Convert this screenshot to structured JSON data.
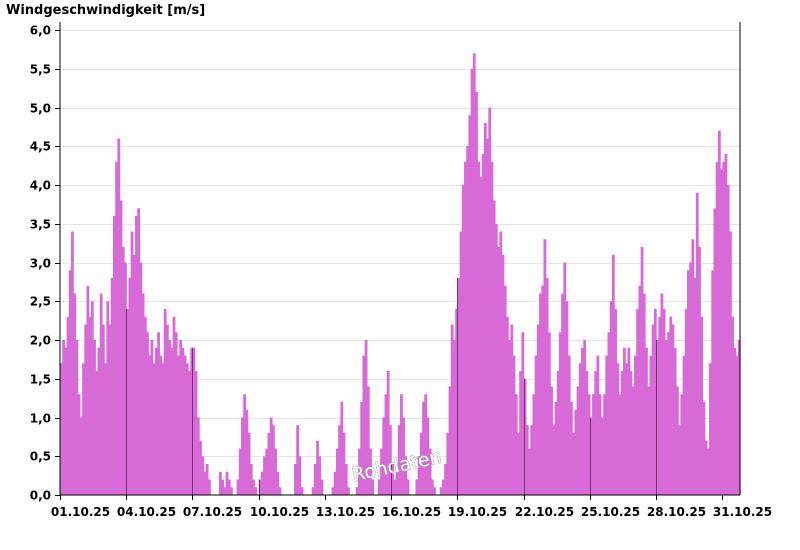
{
  "chart_data": {
    "type": "bar",
    "title": "Windgeschwindigkeit [m/s]",
    "xlabel": "",
    "ylabel": "Windgeschwindigkeit [m/s]",
    "ylim": [
      0,
      6.0
    ],
    "grid": true,
    "series_color": "#d86ad8",
    "day_marker_color": "#7a2c7a",
    "watermark": "Rohdaten",
    "x_unit": "day of October 2025 (bar position in days from 01.10.25 00:00)",
    "y_tick_labels": [
      "0,0",
      "0,5",
      "1,0",
      "1,5",
      "2,0",
      "2,5",
      "3,0",
      "3,5",
      "4,0",
      "4,5",
      "5,0",
      "5,5",
      "6,0"
    ],
    "y_ticks": [
      0,
      0.5,
      1.0,
      1.5,
      2.0,
      2.5,
      3.0,
      3.5,
      4.0,
      4.5,
      5.0,
      5.5,
      6.0
    ],
    "x_tick_labels": [
      "01.10.25",
      "04.10.25",
      "07.10.25",
      "10.10.25",
      "13.10.25",
      "16.10.25",
      "19.10.25",
      "22.10.25",
      "25.10.25",
      "28.10.25",
      "31.10.25"
    ],
    "x_ticks": [
      0,
      3,
      6,
      9,
      12,
      15,
      18,
      21,
      24,
      27,
      30
    ],
    "points": [
      [
        0.0,
        1.7
      ],
      [
        0.1,
        2.0
      ],
      [
        0.2,
        1.9
      ],
      [
        0.3,
        2.3
      ],
      [
        0.4,
        2.9
      ],
      [
        0.5,
        3.4
      ],
      [
        0.6,
        2.6
      ],
      [
        0.7,
        2.0
      ],
      [
        0.8,
        1.3
      ],
      [
        0.9,
        1.0
      ],
      [
        1.0,
        1.7
      ],
      [
        1.1,
        2.2
      ],
      [
        1.2,
        2.7
      ],
      [
        1.3,
        2.3
      ],
      [
        1.4,
        2.5
      ],
      [
        1.5,
        2.0
      ],
      [
        1.6,
        1.6
      ],
      [
        1.7,
        1.9
      ],
      [
        1.8,
        2.6
      ],
      [
        1.9,
        2.2
      ],
      [
        2.0,
        1.7
      ],
      [
        2.1,
        2.5
      ],
      [
        2.2,
        2.2
      ],
      [
        2.3,
        2.8
      ],
      [
        2.4,
        3.6
      ],
      [
        2.5,
        4.3
      ],
      [
        2.6,
        4.6
      ],
      [
        2.7,
        3.8
      ],
      [
        2.8,
        3.2
      ],
      [
        2.9,
        3.0
      ],
      [
        3.0,
        2.4
      ],
      [
        3.1,
        2.8
      ],
      [
        3.2,
        3.4
      ],
      [
        3.3,
        3.1
      ],
      [
        3.4,
        3.6
      ],
      [
        3.5,
        3.7
      ],
      [
        3.6,
        3.0
      ],
      [
        3.7,
        2.6
      ],
      [
        3.8,
        2.3
      ],
      [
        3.9,
        2.1
      ],
      [
        4.0,
        1.8
      ],
      [
        4.1,
        2.0
      ],
      [
        4.2,
        1.7
      ],
      [
        4.3,
        1.9
      ],
      [
        4.4,
        2.1
      ],
      [
        4.5,
        1.8
      ],
      [
        4.6,
        1.7
      ],
      [
        4.7,
        2.4
      ],
      [
        4.8,
        2.2
      ],
      [
        4.9,
        2.0
      ],
      [
        5.0,
        1.9
      ],
      [
        5.1,
        2.3
      ],
      [
        5.2,
        2.1
      ],
      [
        5.3,
        1.8
      ],
      [
        5.4,
        2.0
      ],
      [
        5.5,
        1.9
      ],
      [
        5.6,
        1.8
      ],
      [
        5.7,
        1.7
      ],
      [
        5.8,
        1.6
      ],
      [
        5.9,
        1.9
      ],
      [
        6.0,
        1.9
      ],
      [
        6.1,
        1.6
      ],
      [
        6.2,
        1.0
      ],
      [
        6.3,
        0.7
      ],
      [
        6.4,
        0.5
      ],
      [
        6.5,
        0.3
      ],
      [
        6.6,
        0.4
      ],
      [
        6.7,
        0.2
      ],
      [
        6.8,
        0.0
      ],
      [
        6.9,
        0.0
      ],
      [
        7.0,
        0.0
      ],
      [
        7.1,
        0.0
      ],
      [
        7.2,
        0.3
      ],
      [
        7.3,
        0.2
      ],
      [
        7.4,
        0.1
      ],
      [
        7.5,
        0.3
      ],
      [
        7.6,
        0.2
      ],
      [
        7.7,
        0.1
      ],
      [
        7.8,
        0.0
      ],
      [
        7.9,
        0.0
      ],
      [
        8.0,
        0.2
      ],
      [
        8.1,
        0.6
      ],
      [
        8.2,
        1.0
      ],
      [
        8.3,
        1.3
      ],
      [
        8.4,
        1.1
      ],
      [
        8.5,
        0.8
      ],
      [
        8.6,
        0.4
      ],
      [
        8.7,
        0.2
      ],
      [
        8.8,
        0.1
      ],
      [
        8.9,
        0.0
      ],
      [
        9.0,
        0.2
      ],
      [
        9.1,
        0.3
      ],
      [
        9.2,
        0.5
      ],
      [
        9.3,
        0.6
      ],
      [
        9.4,
        0.8
      ],
      [
        9.5,
        1.0
      ],
      [
        9.6,
        0.9
      ],
      [
        9.7,
        0.6
      ],
      [
        9.8,
        0.3
      ],
      [
        9.9,
        0.1
      ],
      [
        10.0,
        0.0
      ],
      [
        10.1,
        0.0
      ],
      [
        10.2,
        0.0
      ],
      [
        10.3,
        0.0
      ],
      [
        10.4,
        0.0
      ],
      [
        10.5,
        0.0
      ],
      [
        10.6,
        0.4
      ],
      [
        10.7,
        0.9
      ],
      [
        10.8,
        0.5
      ],
      [
        10.9,
        0.1
      ],
      [
        11.0,
        0.0
      ],
      [
        11.1,
        0.0
      ],
      [
        11.2,
        0.0
      ],
      [
        11.3,
        0.0
      ],
      [
        11.4,
        0.1
      ],
      [
        11.5,
        0.4
      ],
      [
        11.6,
        0.7
      ],
      [
        11.7,
        0.5
      ],
      [
        11.8,
        0.2
      ],
      [
        11.9,
        0.0
      ],
      [
        12.0,
        0.0
      ],
      [
        12.1,
        0.0
      ],
      [
        12.2,
        0.0
      ],
      [
        12.3,
        0.1
      ],
      [
        12.4,
        0.3
      ],
      [
        12.5,
        0.6
      ],
      [
        12.6,
        0.9
      ],
      [
        12.7,
        1.2
      ],
      [
        12.8,
        0.8
      ],
      [
        12.9,
        0.4
      ],
      [
        13.0,
        0.1
      ],
      [
        13.1,
        0.0
      ],
      [
        13.2,
        0.0
      ],
      [
        13.3,
        0.0
      ],
      [
        13.4,
        0.1
      ],
      [
        13.5,
        0.6
      ],
      [
        13.6,
        1.2
      ],
      [
        13.7,
        1.8
      ],
      [
        13.8,
        2.0
      ],
      [
        13.9,
        1.4
      ],
      [
        14.0,
        0.6
      ],
      [
        14.1,
        0.2
      ],
      [
        14.2,
        0.0
      ],
      [
        14.3,
        0.0
      ],
      [
        14.4,
        0.2
      ],
      [
        14.5,
        0.6
      ],
      [
        14.6,
        1.0
      ],
      [
        14.7,
        1.3
      ],
      [
        14.8,
        1.6
      ],
      [
        14.9,
        0.9
      ],
      [
        15.0,
        0.4
      ],
      [
        15.1,
        0.2
      ],
      [
        15.2,
        0.4
      ],
      [
        15.3,
        0.9
      ],
      [
        15.4,
        1.3
      ],
      [
        15.5,
        1.0
      ],
      [
        15.6,
        0.5
      ],
      [
        15.7,
        0.2
      ],
      [
        15.8,
        0.0
      ],
      [
        15.9,
        0.0
      ],
      [
        16.0,
        0.0
      ],
      [
        16.1,
        0.2
      ],
      [
        16.2,
        0.5
      ],
      [
        16.3,
        0.8
      ],
      [
        16.4,
        1.2
      ],
      [
        16.5,
        1.3
      ],
      [
        16.6,
        1.0
      ],
      [
        16.7,
        0.6
      ],
      [
        16.8,
        0.2
      ],
      [
        16.9,
        0.1
      ],
      [
        17.0,
        0.0
      ],
      [
        17.1,
        0.0
      ],
      [
        17.2,
        0.1
      ],
      [
        17.3,
        0.2
      ],
      [
        17.4,
        0.4
      ],
      [
        17.5,
        0.8
      ],
      [
        17.6,
        1.4
      ],
      [
        17.7,
        2.2
      ],
      [
        17.8,
        2.0
      ],
      [
        17.9,
        2.4
      ],
      [
        18.0,
        2.8
      ],
      [
        18.1,
        3.4
      ],
      [
        18.2,
        4.0
      ],
      [
        18.3,
        4.3
      ],
      [
        18.4,
        4.5
      ],
      [
        18.5,
        4.9
      ],
      [
        18.6,
        5.5
      ],
      [
        18.7,
        5.7
      ],
      [
        18.8,
        5.2
      ],
      [
        18.9,
        4.3
      ],
      [
        19.0,
        4.1
      ],
      [
        19.1,
        4.4
      ],
      [
        19.2,
        4.8
      ],
      [
        19.3,
        4.6
      ],
      [
        19.4,
        5.0
      ],
      [
        19.5,
        4.3
      ],
      [
        19.6,
        3.8
      ],
      [
        19.7,
        3.5
      ],
      [
        19.8,
        3.2
      ],
      [
        19.9,
        3.4
      ],
      [
        20.0,
        3.1
      ],
      [
        20.1,
        2.7
      ],
      [
        20.2,
        2.3
      ],
      [
        20.3,
        2.0
      ],
      [
        20.4,
        2.2
      ],
      [
        20.5,
        1.8
      ],
      [
        20.6,
        1.3
      ],
      [
        20.7,
        0.8
      ],
      [
        20.8,
        1.6
      ],
      [
        20.9,
        2.1
      ],
      [
        21.0,
        1.5
      ],
      [
        21.1,
        0.9
      ],
      [
        21.2,
        0.6
      ],
      [
        21.3,
        0.9
      ],
      [
        21.4,
        1.3
      ],
      [
        21.5,
        1.8
      ],
      [
        21.6,
        2.2
      ],
      [
        21.7,
        2.6
      ],
      [
        21.8,
        2.7
      ],
      [
        21.9,
        3.3
      ],
      [
        22.0,
        2.8
      ],
      [
        22.1,
        2.1
      ],
      [
        22.2,
        1.4
      ],
      [
        22.3,
        0.9
      ],
      [
        22.4,
        1.2
      ],
      [
        22.5,
        1.6
      ],
      [
        22.6,
        2.1
      ],
      [
        22.7,
        2.6
      ],
      [
        22.8,
        3.0
      ],
      [
        22.9,
        2.5
      ],
      [
        23.0,
        1.8
      ],
      [
        23.1,
        1.2
      ],
      [
        23.2,
        0.8
      ],
      [
        23.3,
        1.1
      ],
      [
        23.4,
        1.4
      ],
      [
        23.5,
        1.7
      ],
      [
        23.6,
        1.9
      ],
      [
        23.7,
        2.0
      ],
      [
        23.8,
        1.6
      ],
      [
        23.9,
        1.3
      ],
      [
        24.0,
        1.0
      ],
      [
        24.1,
        1.3
      ],
      [
        24.2,
        1.6
      ],
      [
        24.3,
        1.8
      ],
      [
        24.4,
        1.3
      ],
      [
        24.5,
        1.0
      ],
      [
        24.6,
        1.3
      ],
      [
        24.7,
        1.8
      ],
      [
        24.8,
        2.1
      ],
      [
        24.9,
        2.5
      ],
      [
        25.0,
        3.1
      ],
      [
        25.1,
        2.4
      ],
      [
        25.2,
        1.7
      ],
      [
        25.3,
        1.3
      ],
      [
        25.4,
        1.6
      ],
      [
        25.5,
        1.9
      ],
      [
        25.6,
        1.7
      ],
      [
        25.7,
        1.9
      ],
      [
        25.8,
        1.6
      ],
      [
        25.9,
        1.4
      ],
      [
        26.0,
        1.8
      ],
      [
        26.1,
        2.4
      ],
      [
        26.2,
        2.7
      ],
      [
        26.3,
        3.2
      ],
      [
        26.4,
        2.6
      ],
      [
        26.5,
        1.9
      ],
      [
        26.6,
        1.4
      ],
      [
        26.7,
        1.8
      ],
      [
        26.8,
        2.2
      ],
      [
        26.9,
        2.4
      ],
      [
        27.0,
        2.0
      ],
      [
        27.1,
        2.3
      ],
      [
        27.2,
        2.6
      ],
      [
        27.3,
        2.4
      ],
      [
        27.4,
        2.0
      ],
      [
        27.5,
        2.1
      ],
      [
        27.6,
        2.3
      ],
      [
        27.7,
        2.2
      ],
      [
        27.8,
        1.9
      ],
      [
        27.9,
        1.4
      ],
      [
        28.0,
        0.9
      ],
      [
        28.1,
        1.3
      ],
      [
        28.2,
        1.8
      ],
      [
        28.3,
        2.4
      ],
      [
        28.4,
        2.9
      ],
      [
        28.5,
        3.0
      ],
      [
        28.6,
        3.3
      ],
      [
        28.7,
        2.8
      ],
      [
        28.8,
        3.9
      ],
      [
        28.9,
        3.2
      ],
      [
        29.0,
        2.3
      ],
      [
        29.1,
        1.2
      ],
      [
        29.2,
        0.7
      ],
      [
        29.3,
        0.6
      ],
      [
        29.4,
        1.7
      ],
      [
        29.5,
        2.9
      ],
      [
        29.6,
        3.7
      ],
      [
        29.7,
        4.3
      ],
      [
        29.8,
        4.7
      ],
      [
        29.9,
        4.2
      ],
      [
        30.0,
        4.3
      ],
      [
        30.1,
        4.4
      ],
      [
        30.2,
        4.0
      ],
      [
        30.3,
        3.4
      ],
      [
        30.4,
        2.3
      ],
      [
        30.5,
        1.9
      ],
      [
        30.6,
        1.8
      ],
      [
        30.7,
        2.0
      ]
    ]
  }
}
